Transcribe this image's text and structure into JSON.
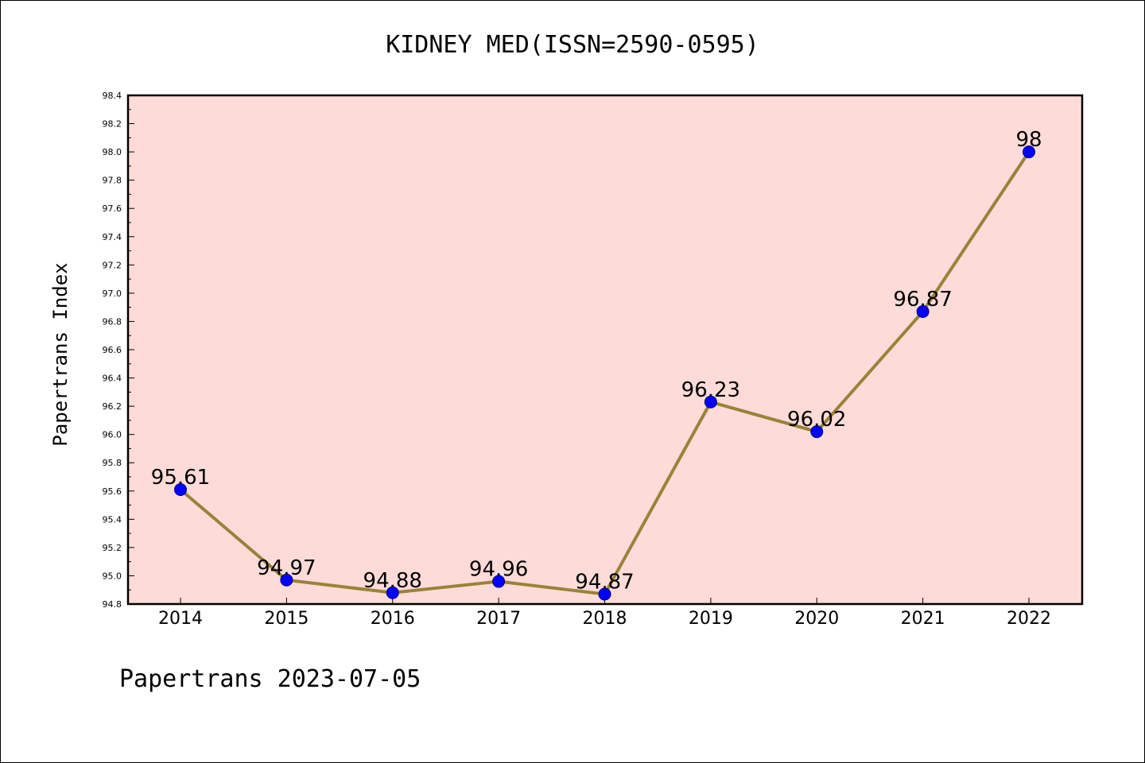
{
  "chart_data": {
    "type": "line",
    "title": "KIDNEY MED(ISSN=2590-0595)",
    "xlabel": "",
    "ylabel": "Papertrans Index",
    "footer": "Papertrans 2023-07-05",
    "categories": [
      "2014",
      "2015",
      "2016",
      "2017",
      "2018",
      "2019",
      "2020",
      "2021",
      "2022"
    ],
    "series": [
      {
        "values": [
          95.61,
          94.97,
          94.88,
          94.96,
          94.87,
          96.23,
          96.02,
          96.87,
          98
        ],
        "labels": [
          "95.61",
          "94.97",
          "94.88",
          "94.96",
          "94.87",
          "96.23",
          "96.02",
          "96.87",
          "98"
        ]
      }
    ],
    "ylim": [
      94.8,
      98.4
    ],
    "yticks": [
      "94.8",
      "95.0",
      "95.2",
      "95.4",
      "95.6",
      "95.8",
      "96.0",
      "96.2",
      "96.4",
      "96.6",
      "96.8",
      "97.0",
      "97.2",
      "97.4",
      "97.6",
      "97.8",
      "98.0",
      "98.2",
      "98.4"
    ],
    "grid": false,
    "colors": {
      "plot_background": "#fddbd8",
      "line": "#9a8238",
      "marker": "#0000ff"
    }
  }
}
